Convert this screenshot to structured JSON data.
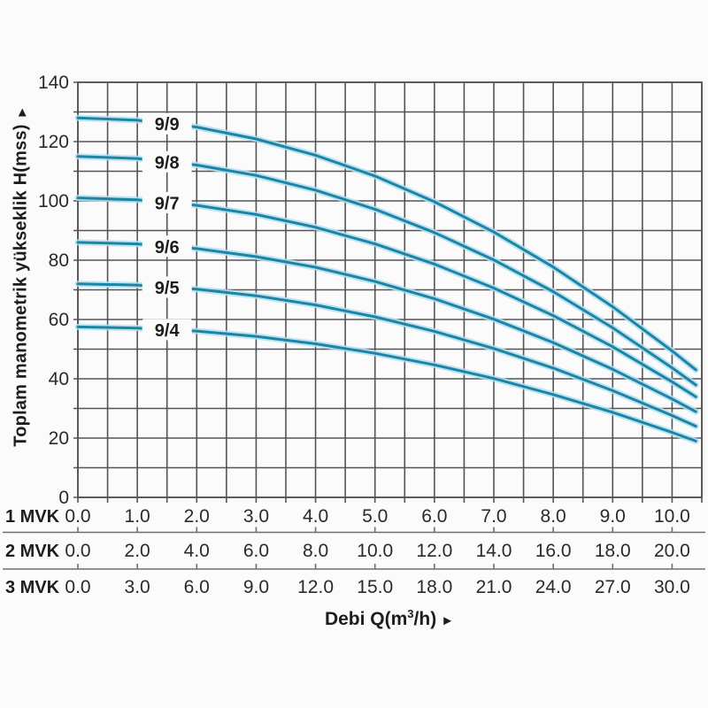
{
  "chart_data": {
    "type": "line",
    "title": "",
    "ylabel": "Toplam manometrik yükseklik H(mss)",
    "ylabel_arrow": "►",
    "xlabel_prefix": "Debi Q(m",
    "xlabel_sup": "3",
    "xlabel_suffix": "/h)",
    "xlabel_arrow": "►",
    "xlim": [
      0,
      10.5
    ],
    "ylim": [
      0,
      140
    ],
    "grid": {
      "on": true,
      "x_step": 0.5,
      "y_step": 10
    },
    "legend_position": "on-curve-labels",
    "y_tick_values": [
      0,
      20,
      40,
      60,
      80,
      100,
      120,
      140
    ],
    "y_tick_labels": [
      "0",
      "20",
      "40",
      "60",
      "80",
      "100",
      "120",
      "140"
    ],
    "x_axes": [
      {
        "label": "1 MVK",
        "tick_labels": [
          "0.0",
          "1.0",
          "2.0",
          "3.0",
          "4.0",
          "5.0",
          "6.0",
          "7.0",
          "8.0",
          "9.0",
          "10.0"
        ]
      },
      {
        "label": "2 MVK",
        "tick_labels": [
          "0.0",
          "2.0",
          "4.0",
          "6.0",
          "8.0",
          "10.0",
          "12.0",
          "14.0",
          "16.0",
          "18.0",
          "20.0"
        ]
      },
      {
        "label": "3 MVK",
        "tick_labels": [
          "0.0",
          "3.0",
          "6.0",
          "9.0",
          "12.0",
          "15.0",
          "18.0",
          "21.0",
          "24.0",
          "27.0",
          "30.0"
        ]
      }
    ],
    "series": [
      {
        "name": "9/9",
        "label_q": 1.5,
        "points": [
          [
            0,
            128
          ],
          [
            1,
            127.2
          ],
          [
            2,
            124.9
          ],
          [
            3,
            120.9
          ],
          [
            4,
            115.4
          ],
          [
            5,
            108.4
          ],
          [
            6,
            99.7
          ],
          [
            7,
            89.5
          ],
          [
            8,
            77.7
          ],
          [
            9,
            64.3
          ],
          [
            10,
            49.4
          ],
          [
            10.4,
            43.0
          ]
        ]
      },
      {
        "name": "9/8",
        "label_q": 1.5,
        "points": [
          [
            0,
            115
          ],
          [
            1,
            114.3
          ],
          [
            2,
            112.1
          ],
          [
            3,
            108.6
          ],
          [
            4,
            103.6
          ],
          [
            5,
            97.2
          ],
          [
            6,
            89.3
          ],
          [
            7,
            80.1
          ],
          [
            8,
            69.4
          ],
          [
            9,
            57.2
          ],
          [
            10,
            43.7
          ],
          [
            10.4,
            37.9
          ]
        ]
      },
      {
        "name": "9/7",
        "label_q": 1.5,
        "points": [
          [
            0,
            101
          ],
          [
            1,
            100.4
          ],
          [
            2,
            98.5
          ],
          [
            3,
            95.4
          ],
          [
            4,
            91.1
          ],
          [
            5,
            85.5
          ],
          [
            6,
            78.7
          ],
          [
            7,
            70.6
          ],
          [
            8,
            61.3
          ],
          [
            9,
            50.8
          ],
          [
            10,
            39.0
          ],
          [
            10.4,
            33.9
          ]
        ]
      },
      {
        "name": "9/6",
        "label_q": 1.5,
        "points": [
          [
            0,
            86
          ],
          [
            1,
            85.5
          ],
          [
            2,
            83.9
          ],
          [
            3,
            81.2
          ],
          [
            4,
            77.6
          ],
          [
            5,
            72.8
          ],
          [
            6,
            67.0
          ],
          [
            7,
            60.1
          ],
          [
            8,
            52.2
          ],
          [
            9,
            43.2
          ],
          [
            10,
            33.2
          ],
          [
            10.4,
            28.9
          ]
        ]
      },
      {
        "name": "9/5",
        "label_q": 1.5,
        "points": [
          [
            0,
            72
          ],
          [
            1,
            71.6
          ],
          [
            2,
            70.2
          ],
          [
            3,
            68.0
          ],
          [
            4,
            64.9
          ],
          [
            5,
            60.9
          ],
          [
            6,
            56.0
          ],
          [
            7,
            50.2
          ],
          [
            8,
            43.6
          ],
          [
            9,
            36.0
          ],
          [
            10,
            27.6
          ],
          [
            10.4,
            24.0
          ]
        ]
      },
      {
        "name": "9/4",
        "label_q": 1.5,
        "points": [
          [
            0,
            57.5
          ],
          [
            1,
            57.1
          ],
          [
            2,
            56.1
          ],
          [
            3,
            54.3
          ],
          [
            4,
            51.8
          ],
          [
            5,
            48.6
          ],
          [
            6,
            44.7
          ],
          [
            7,
            40.1
          ],
          [
            8,
            34.7
          ],
          [
            9,
            28.7
          ],
          [
            10,
            21.9
          ],
          [
            10.4,
            19.0
          ]
        ]
      }
    ],
    "colors": {
      "curve": "#1e84a6",
      "curve_halo": "#b3dfee",
      "grid": "#545456",
      "separator": "#6f6f6f",
      "text": "#1d1d1f",
      "background": "#fbfbfc"
    }
  }
}
